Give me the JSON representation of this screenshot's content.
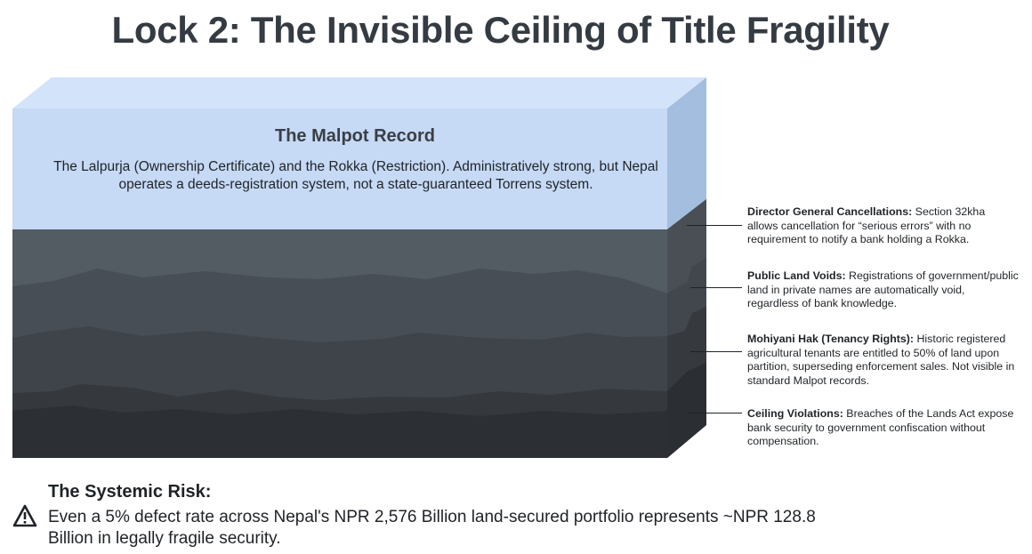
{
  "title": "Lock 2: The Invisible Ceiling of Title Fragility",
  "top_layer": {
    "heading": "The Malpot Record",
    "body": "The Lalpurja (Ownership Certificate) and the Rokka (Restriction). Administratively strong, but Nepal operates a deeds-registration system, not a state-guaranteed Torrens system."
  },
  "callouts": [
    {
      "label": "Director General Cancellations:",
      "text": " Section 32kha allows cancellation for “serious errors” with no requirement to notify a bank holding a Rokka."
    },
    {
      "label": "Public Land Voids:",
      "text": " Registrations of government/public land in private names are automatically void, regardless of bank knowledge."
    },
    {
      "label": "Mohiyani Hak (Tenancy Rights):",
      "text": " Historic registered agricultural tenants are entitled to 50% of land upon partition, superseding enforcement sales. Not visible in standard Malpot records."
    },
    {
      "label": "Ceiling Violations:",
      "text": " Breaches of the Lands Act expose bank security to government confiscation without compensation."
    }
  ],
  "systemic_risk": {
    "heading": "The Systemic Risk:",
    "body": "Even a 5% defect rate across Nepal's NPR 2,576 Billion land-secured portfolio represents ~NPR 128.8 Billion in legally fragile security."
  },
  "colors": {
    "top_front": "#c6d9f5",
    "top_face": "#d3e3fa",
    "top_side": "#a3bedf",
    "strata": [
      "#535b63",
      "#474e55",
      "#3e444a",
      "#35393e",
      "#2c2f33"
    ],
    "strata_side": [
      "#494f55",
      "#3e4349",
      "#36393e",
      "#2e3135",
      "#26292c"
    ]
  },
  "icons": {
    "risk": "warning-triangle-icon"
  }
}
